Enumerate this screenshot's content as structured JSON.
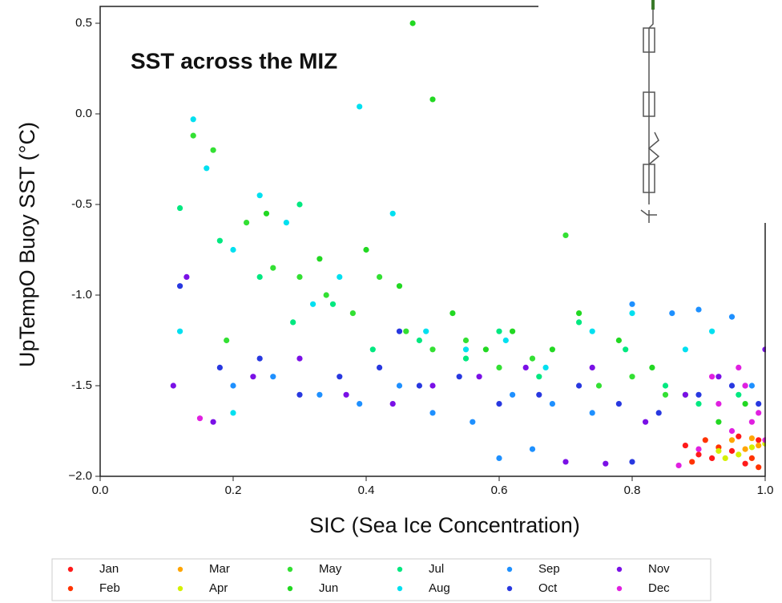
{
  "chart_data": {
    "type": "scatter",
    "title": "SST across the MIZ",
    "x_label": "SIC (Sea Ice Concentration)",
    "y_label": "UpTempO Buoy SST (°C)",
    "xlim": [
      0,
      1
    ],
    "ylim": [
      -2,
      0.5
    ],
    "xticks": [
      {
        "value": 0,
        "label": "0.0"
      },
      0.2,
      0.4,
      0.6,
      0.8,
      {
        "value": 1,
        "label": "1.0"
      }
    ],
    "yticks": [
      {
        "value": -2,
        "label": "−2.0"
      },
      -1.5,
      {
        "value": -1,
        "label": "-1.0"
      },
      -0.5,
      {
        "value": 0,
        "label": "0.0"
      },
      0.5
    ],
    "grid": false,
    "legend": "bottom",
    "series": [
      {
        "name": "Jan",
        "color": "#ff1a1a",
        "x": [
          0.88,
          0.92,
          0.95,
          0.97,
          0.99,
          0.9,
          0.96
        ],
        "y": [
          -1.83,
          -1.9,
          -1.86,
          -1.93,
          -1.8,
          -1.88,
          -1.78
        ]
      },
      {
        "name": "Feb",
        "color": "#ff3300",
        "x": [
          0.89,
          0.93,
          0.98,
          0.91,
          0.99
        ],
        "y": [
          -1.92,
          -1.84,
          -1.9,
          -1.8,
          -1.95
        ]
      },
      {
        "name": "Mar",
        "color": "#ffa500",
        "x": [
          0.95,
          0.97,
          0.99,
          0.98
        ],
        "y": [
          -1.8,
          -1.85,
          -1.83,
          -1.79
        ]
      },
      {
        "name": "Apr",
        "color": "#d4f000",
        "x": [
          0.93,
          0.96,
          0.98,
          1.0,
          0.94
        ],
        "y": [
          -1.86,
          -1.88,
          -1.84,
          -1.82,
          -1.9
        ]
      },
      {
        "name": "May",
        "color": "#33e033",
        "x": [
          0.17,
          0.22,
          0.26,
          0.3,
          0.34,
          0.38,
          0.42,
          0.46,
          0.5,
          0.55,
          0.6,
          0.65,
          0.7,
          0.75,
          0.8,
          0.85,
          0.14,
          0.19
        ],
        "y": [
          -0.2,
          -0.6,
          -0.85,
          -0.9,
          -1.0,
          -1.1,
          -0.9,
          -1.2,
          -1.3,
          -1.25,
          -1.4,
          -1.35,
          -0.67,
          -1.5,
          -1.45,
          -1.55,
          -0.12,
          -1.25
        ]
      },
      {
        "name": "Jun",
        "color": "#22d822",
        "x": [
          0.47,
          0.5,
          0.25,
          0.33,
          0.4,
          0.45,
          0.53,
          0.62,
          0.68,
          0.72,
          0.78,
          0.83,
          0.88,
          0.93,
          0.97,
          0.58
        ],
        "y": [
          0.5,
          0.08,
          -0.55,
          -0.8,
          -0.75,
          -0.95,
          -1.1,
          -1.2,
          -1.3,
          -1.1,
          -1.25,
          -1.4,
          -1.55,
          -1.7,
          -1.6,
          -1.3
        ]
      },
      {
        "name": "Jul",
        "color": "#00e880",
        "x": [
          0.12,
          0.18,
          0.24,
          0.29,
          0.35,
          0.41,
          0.48,
          0.55,
          0.6,
          0.66,
          0.72,
          0.79,
          0.85,
          0.9,
          0.96,
          0.3
        ],
        "y": [
          -0.52,
          -0.7,
          -0.9,
          -1.15,
          -1.05,
          -1.3,
          -1.25,
          -1.35,
          -1.2,
          -1.45,
          -1.15,
          -1.3,
          -1.5,
          -1.6,
          -1.55,
          -0.5
        ]
      },
      {
        "name": "Aug",
        "color": "#00e0f0",
        "x": [
          0.14,
          0.16,
          0.2,
          0.24,
          0.28,
          0.32,
          0.36,
          0.39,
          0.44,
          0.49,
          0.55,
          0.61,
          0.67,
          0.74,
          0.8,
          0.88,
          0.92,
          0.12,
          0.2
        ],
        "y": [
          -0.03,
          -0.3,
          -0.75,
          -0.45,
          -0.6,
          -1.05,
          -0.9,
          0.04,
          -0.55,
          -1.2,
          -1.3,
          -1.25,
          -1.4,
          -1.2,
          -1.1,
          -1.3,
          -1.2,
          -1.2,
          -1.65
        ]
      },
      {
        "name": "Sep",
        "color": "#1e90ff",
        "x": [
          0.2,
          0.26,
          0.33,
          0.39,
          0.45,
          0.5,
          0.56,
          0.62,
          0.68,
          0.74,
          0.8,
          0.86,
          0.9,
          0.95,
          0.98,
          0.6,
          0.65
        ],
        "y": [
          -1.5,
          -1.45,
          -1.55,
          -1.6,
          -1.5,
          -1.65,
          -1.7,
          -1.55,
          -1.6,
          -1.65,
          -1.05,
          -1.1,
          -1.08,
          -1.12,
          -1.5,
          -1.9,
          -1.85
        ]
      },
      {
        "name": "Oct",
        "color": "#2838e0",
        "x": [
          0.12,
          0.18,
          0.24,
          0.3,
          0.36,
          0.42,
          0.48,
          0.54,
          0.6,
          0.66,
          0.72,
          0.78,
          0.84,
          0.9,
          0.95,
          0.99,
          0.8,
          0.45
        ],
        "y": [
          -0.95,
          -1.4,
          -1.35,
          -1.55,
          -1.45,
          -1.4,
          -1.5,
          -1.45,
          -1.6,
          -1.55,
          -1.5,
          -1.6,
          -1.65,
          -1.55,
          -1.5,
          -1.6,
          -1.92,
          -1.2
        ]
      },
      {
        "name": "Nov",
        "color": "#7a10e6",
        "x": [
          0.11,
          0.13,
          0.17,
          0.23,
          0.3,
          0.37,
          0.44,
          0.5,
          0.57,
          0.64,
          0.7,
          0.76,
          0.82,
          0.88,
          0.93,
          0.97,
          1.0,
          0.74
        ],
        "y": [
          -1.5,
          -0.9,
          -1.7,
          -1.45,
          -1.35,
          -1.55,
          -1.6,
          -1.5,
          -1.45,
          -1.4,
          -1.92,
          -1.93,
          -1.7,
          -1.55,
          -1.45,
          -1.5,
          -1.3,
          -1.4
        ]
      },
      {
        "name": "Dec",
        "color": "#e020e0",
        "x": [
          0.15,
          0.87,
          0.9,
          0.93,
          0.95,
          0.97,
          0.99,
          1.0,
          0.92,
          0.96,
          0.98
        ],
        "y": [
          -1.68,
          -1.94,
          -1.85,
          -1.6,
          -1.75,
          -1.5,
          -1.65,
          -1.8,
          -1.45,
          -1.4,
          -1.7
        ]
      }
    ]
  }
}
